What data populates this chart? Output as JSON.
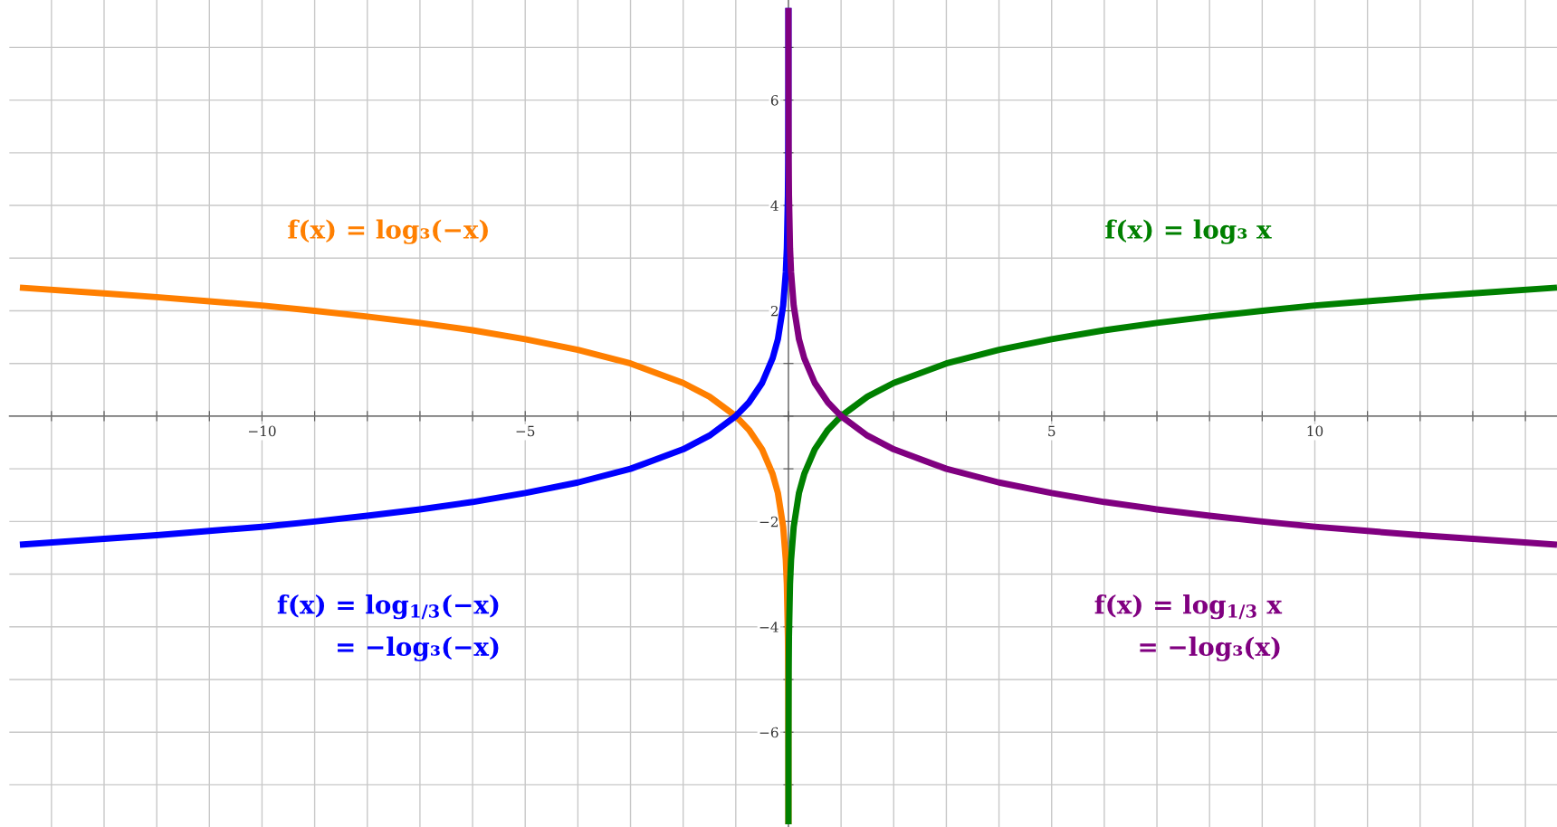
{
  "chart_data": {
    "type": "line",
    "xlim": [
      -14.8,
      14.6
    ],
    "ylim": [
      -7.8,
      7.9
    ],
    "xticks": [
      {
        "value": -14,
        "label": null
      },
      {
        "value": -13,
        "label": null
      },
      {
        "value": -12,
        "label": null
      },
      {
        "value": -11,
        "label": null
      },
      {
        "value": -10,
        "label": "−10"
      },
      {
        "value": -9,
        "label": null
      },
      {
        "value": -8,
        "label": null
      },
      {
        "value": -7,
        "label": null
      },
      {
        "value": -6,
        "label": null
      },
      {
        "value": -5,
        "label": "−5"
      },
      {
        "value": -4,
        "label": null
      },
      {
        "value": -3,
        "label": null
      },
      {
        "value": -2,
        "label": null
      },
      {
        "value": -1,
        "label": null
      },
      {
        "value": 0,
        "label": null
      },
      {
        "value": 1,
        "label": null
      },
      {
        "value": 2,
        "label": null
      },
      {
        "value": 3,
        "label": null
      },
      {
        "value": 4,
        "label": null
      },
      5,
      {
        "value": 6,
        "label": null
      },
      {
        "value": 7,
        "label": null
      },
      {
        "value": 8,
        "label": null
      },
      {
        "value": 9,
        "label": null
      },
      10,
      {
        "value": 11,
        "label": null
      },
      {
        "value": 12,
        "label": null
      },
      {
        "value": 13,
        "label": null
      },
      {
        "value": 14,
        "label": null
      }
    ],
    "yticks": [
      {
        "value": -7,
        "label": null
      },
      {
        "value": -6,
        "label": "−6"
      },
      {
        "value": -5,
        "label": null
      },
      {
        "value": -4,
        "label": "−4"
      },
      {
        "value": -3,
        "label": null
      },
      {
        "value": -2,
        "label": "−2"
      },
      {
        "value": -1,
        "label": null
      },
      {
        "value": 0,
        "label": null
      },
      {
        "value": 1,
        "label": null
      },
      2,
      {
        "value": 3,
        "label": null
      },
      4,
      {
        "value": 5,
        "label": null
      },
      6,
      {
        "value": 7,
        "label": null
      }
    ],
    "grid": true,
    "legend": false,
    "marker": "none",
    "line_style": "solid",
    "series": [
      {
        "name": "f(x) = log₃(−x)",
        "color": "#ff7f00",
        "x": [
          -14.6,
          -13,
          -12,
          -11,
          -10,
          -9,
          -8,
          -7,
          -6,
          -5,
          -4,
          -3,
          -2,
          -1.5,
          -1,
          -0.75,
          -0.5,
          -0.3,
          -0.2,
          -0.1,
          -0.05,
          -0.03,
          -0.01,
          -0.005,
          -0.001,
          -0.0002
        ],
        "values": [
          2.44,
          2.33,
          2.26,
          2.18,
          2.1,
          2,
          1.89,
          1.77,
          1.63,
          1.46,
          1.26,
          1,
          0.63,
          0.37,
          0,
          -0.26,
          -0.63,
          -1.1,
          -1.46,
          -2.1,
          -2.73,
          -3.19,
          -4.19,
          -4.82,
          -6.29,
          -7.75
        ]
      },
      {
        "name": "f(x) = log₃ x",
        "color": "#008000",
        "x": [
          0.0002,
          0.001,
          0.005,
          0.01,
          0.03,
          0.05,
          0.1,
          0.2,
          0.3,
          0.5,
          0.75,
          1,
          1.5,
          2,
          3,
          4,
          5,
          6,
          7,
          8,
          9,
          10,
          11,
          12,
          13,
          14.6
        ],
        "values": [
          -7.75,
          -6.29,
          -4.82,
          -4.19,
          -3.19,
          -2.73,
          -2.1,
          -1.46,
          -1.1,
          -0.63,
          -0.26,
          0,
          0.37,
          0.63,
          1,
          1.26,
          1.46,
          1.63,
          1.77,
          1.89,
          2,
          2.1,
          2.18,
          2.26,
          2.33,
          2.44
        ]
      },
      {
        "name": "f(x) = log$_{1/3}$(−x)\n= −log₃(−x)",
        "color": "#0000ff",
        "x": [
          -14.6,
          -13,
          -12,
          -11,
          -10,
          -9,
          -8,
          -7,
          -6,
          -5,
          -4,
          -3,
          -2,
          -1.5,
          -1,
          -0.75,
          -0.5,
          -0.3,
          -0.2,
          -0.1,
          -0.05,
          -0.03,
          -0.01,
          -0.005,
          -0.001,
          -0.0002
        ],
        "values": [
          -2.44,
          -2.33,
          -2.26,
          -2.18,
          -2.1,
          -2,
          -1.89,
          -1.77,
          -1.63,
          -1.46,
          -1.26,
          -1,
          -0.63,
          -0.37,
          0,
          0.26,
          0.63,
          1.1,
          1.46,
          2.1,
          2.73,
          3.19,
          4.19,
          4.82,
          6.29,
          7.75
        ]
      },
      {
        "name": "f(x) = log$_{1/3}$ x\n= −log₃(x)",
        "color": "#800080",
        "x": [
          0.0002,
          0.001,
          0.005,
          0.01,
          0.03,
          0.05,
          0.1,
          0.2,
          0.3,
          0.5,
          0.75,
          1,
          1.5,
          2,
          3,
          4,
          5,
          6,
          7,
          8,
          9,
          10,
          11,
          12,
          13,
          14.6
        ],
        "values": [
          7.75,
          6.29,
          4.82,
          4.19,
          3.19,
          2.73,
          2.1,
          1.46,
          1.1,
          0.63,
          0.26,
          0,
          -0.37,
          -0.63,
          -1,
          -1.26,
          -1.46,
          -1.63,
          -1.77,
          -1.89,
          -2,
          -2.1,
          -2.18,
          -2.26,
          -2.33,
          -2.44
        ]
      }
    ]
  }
}
